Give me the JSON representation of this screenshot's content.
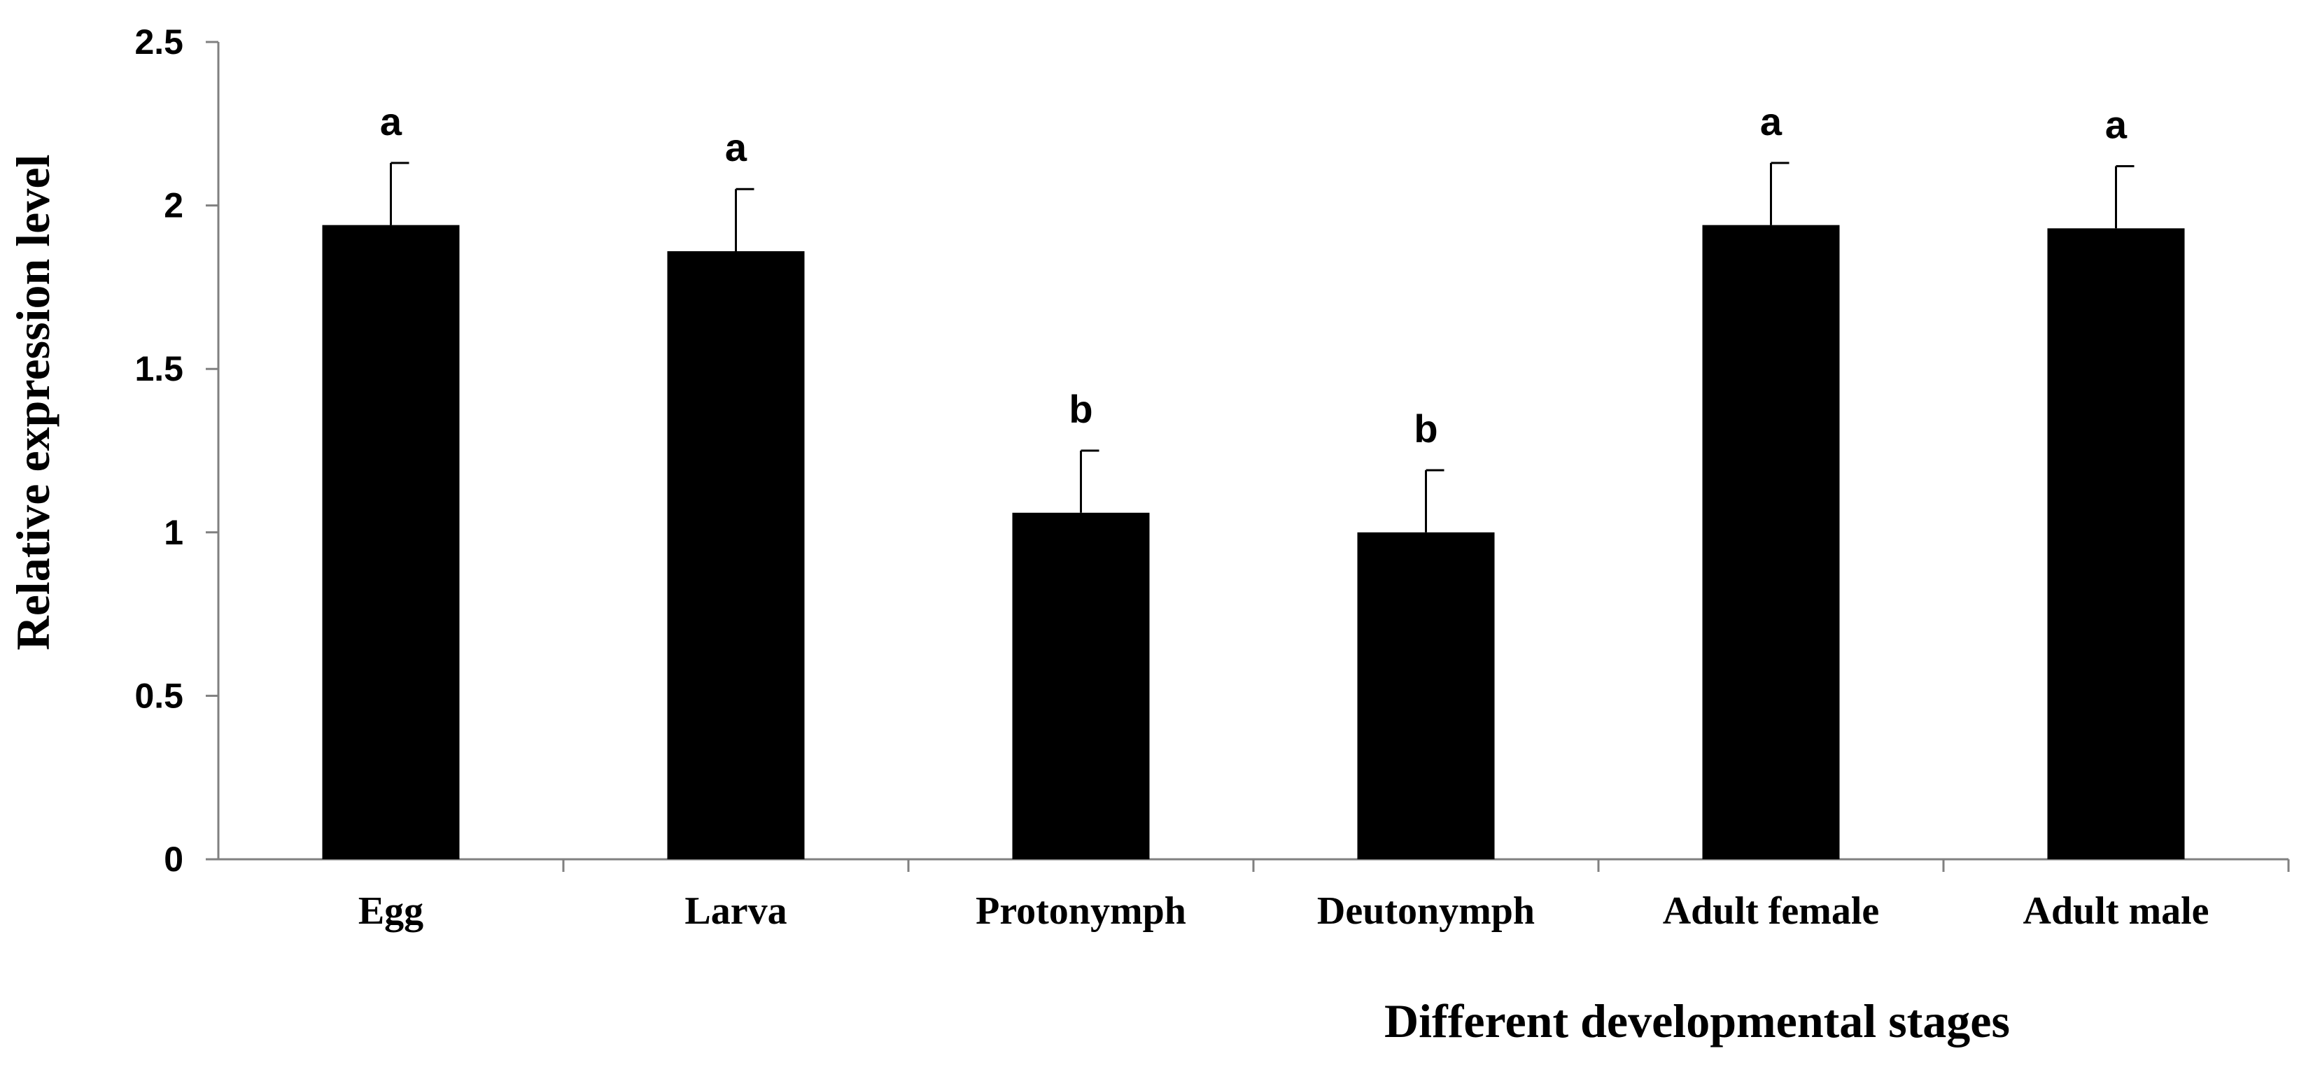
{
  "chart_data": {
    "type": "bar",
    "title": "",
    "xlabel": "Different developmental stages",
    "ylabel": "Relative expression level",
    "categories": [
      "Egg",
      "Larva",
      "Protonymph",
      "Deutonymph",
      "Adult female",
      "Adult male"
    ],
    "values": [
      1.94,
      1.86,
      1.06,
      1.0,
      1.94,
      1.93
    ],
    "error": [
      0.19,
      0.19,
      0.19,
      0.19,
      0.19,
      0.19
    ],
    "significance": [
      "a",
      "a",
      "b",
      "b",
      "a",
      "a"
    ],
    "ylim": [
      0,
      2.5
    ],
    "yticks": [
      0,
      0.5,
      1,
      1.5,
      2,
      2.5
    ],
    "ytick_labels": [
      "0",
      "0.5",
      "1",
      "1.5",
      "2",
      "2.5"
    ],
    "grid": false,
    "legend": "none",
    "bar_color": "#000000"
  }
}
